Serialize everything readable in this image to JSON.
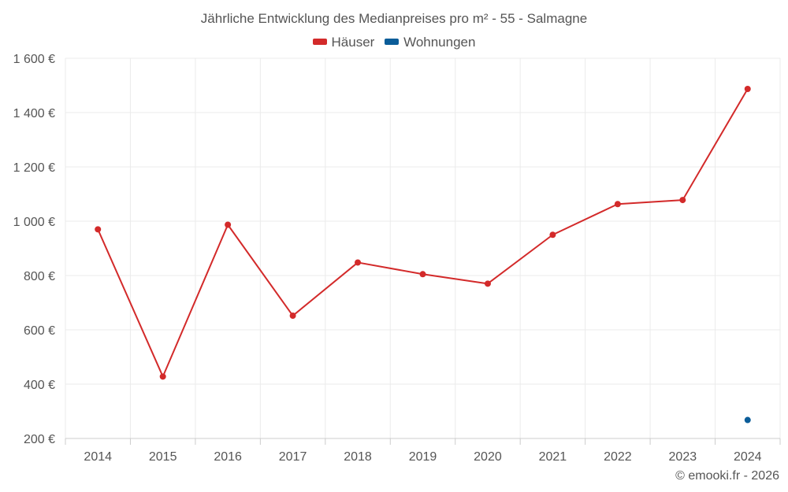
{
  "chart_data": {
    "type": "line",
    "title": "Jährliche Entwicklung des Medianpreises pro m² - 55 - Salmagne",
    "categories": [
      "2014",
      "2015",
      "2016",
      "2017",
      "2018",
      "2019",
      "2020",
      "2021",
      "2022",
      "2023",
      "2024"
    ],
    "series": [
      {
        "name": "Häuser",
        "color": "#d32a2a",
        "values": [
          970,
          428,
          987,
          652,
          848,
          805,
          770,
          950,
          1063,
          1078,
          1487
        ]
      },
      {
        "name": "Wohnungen",
        "color": "#0b5d99",
        "values": [
          null,
          null,
          null,
          null,
          null,
          null,
          null,
          null,
          null,
          null,
          268
        ]
      }
    ],
    "ylim": [
      200,
      1600
    ],
    "yticks": [
      200,
      400,
      600,
      800,
      1000,
      1200,
      1400,
      1600
    ],
    "ytick_labels": [
      "200 €",
      "400 €",
      "600 €",
      "800 €",
      "1 000 €",
      "1 200 €",
      "1 400 €",
      "1 600 €"
    ],
    "grid": true,
    "legend_position": "top-center"
  },
  "credit": "© emooki.fr - 2026"
}
